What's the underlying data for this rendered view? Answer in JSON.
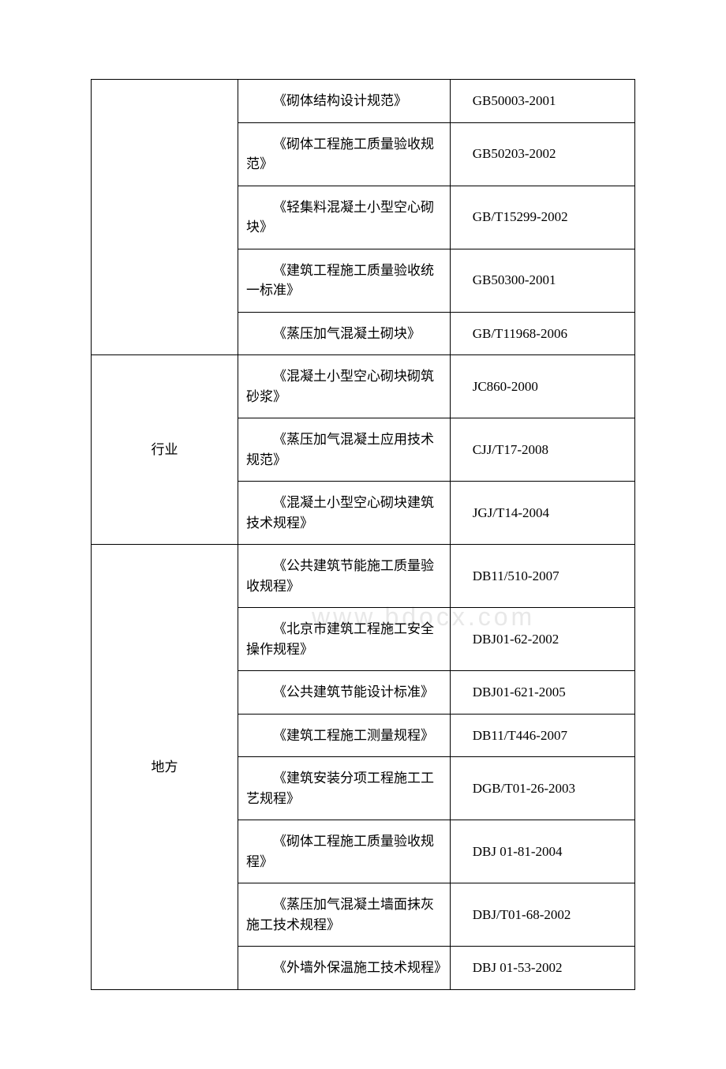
{
  "watermark": "www.bdocx.com",
  "table": {
    "columns": [
      "category",
      "name",
      "code"
    ],
    "column_widths": [
      "27%",
      "39%",
      "34%"
    ],
    "border_color": "#000000",
    "font_size": 17,
    "background_color": "#ffffff",
    "rows": [
      {
        "category": "",
        "category_rowspan": 5,
        "name": "《砌体结构设计规范》",
        "code": "GB50003-2001"
      },
      {
        "name": "《砌体工程施工质量验收规范》",
        "code": "GB50203-2002"
      },
      {
        "name": "《轻集料混凝土小型空心砌块》",
        "code": "GB/T15299-2002"
      },
      {
        "name": "《建筑工程施工质量验收统一标准》",
        "code": "GB50300-2001"
      },
      {
        "name": "《蒸压加气混凝土砌块》",
        "code": "GB/T11968-2006"
      },
      {
        "category": "行业",
        "category_rowspan": 3,
        "name": "《混凝土小型空心砌块砌筑砂浆》",
        "code": "JC860-2000"
      },
      {
        "name": "《蒸压加气混凝土应用技术规范》",
        "code": "CJJ/T17-2008"
      },
      {
        "name": "《混凝土小型空心砌块建筑技术规程》",
        "code": "JGJ/T14-2004"
      },
      {
        "category": "地方",
        "category_rowspan": 8,
        "name": "《公共建筑节能施工质量验收规程》",
        "code": "DB11/510-2007"
      },
      {
        "name": "《北京市建筑工程施工安全操作规程》",
        "code": "DBJ01-62-2002"
      },
      {
        "name": "《公共建筑节能设计标准》",
        "code": "DBJ01-621-2005"
      },
      {
        "name": "《建筑工程施工测量规程》",
        "code": "DB11/T446-2007"
      },
      {
        "name": "《建筑安装分项工程施工工艺规程》",
        "code": "DGB/T01-26-2003"
      },
      {
        "name": "《砌体工程施工质量验收规程》",
        "code": "DBJ 01-81-2004"
      },
      {
        "name": "《蒸压加气混凝土墙面抹灰施工技术规程》",
        "code": "DBJ/T01-68-2002"
      },
      {
        "name": "《外墙外保温施工技术规程》",
        "code": "DBJ 01-53-2002"
      }
    ]
  }
}
